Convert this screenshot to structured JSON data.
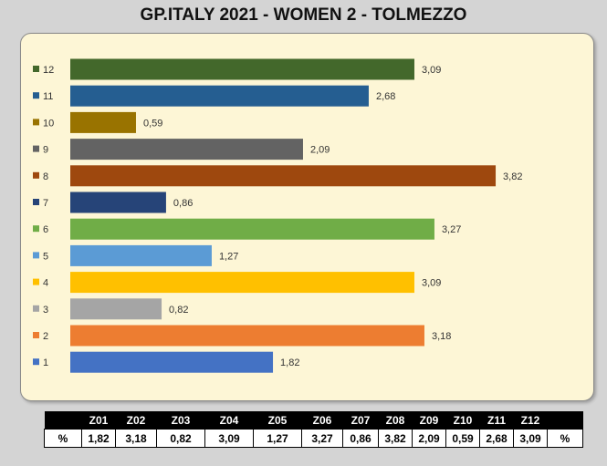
{
  "title": "GP.ITALY 2021 - WOMEN 2 - TOLMEZZO",
  "chart_data": {
    "type": "bar",
    "orientation": "horizontal",
    "categories": [
      "1",
      "2",
      "3",
      "4",
      "5",
      "6",
      "7",
      "8",
      "9",
      "10",
      "11",
      "12"
    ],
    "values": [
      1.82,
      3.18,
      0.82,
      3.09,
      1.27,
      3.27,
      0.86,
      3.82,
      2.09,
      0.59,
      2.68,
      3.09
    ],
    "data_labels": [
      "1,82",
      "3,18",
      "0,82",
      "3,09",
      "1,27",
      "3,27",
      "0,86",
      "3,82",
      "2,09",
      "0,59",
      "2,68",
      "3,09"
    ],
    "colors": [
      "#4472c4",
      "#ed7d31",
      "#a5a5a5",
      "#ffc000",
      "#5b9bd5",
      "#70ad47",
      "#264478",
      "#9e480e",
      "#636363",
      "#997300",
      "#255e91",
      "#43682b"
    ],
    "xlim": [
      0,
      4.4
    ],
    "grid": false,
    "legend": "left"
  },
  "table": {
    "headers": [
      "",
      "Z01",
      "Z02",
      "Z03",
      "Z04",
      "Z05",
      "Z06",
      "Z07",
      "Z08",
      "Z09",
      "Z10",
      "Z11",
      "Z12",
      ""
    ],
    "row": [
      "%",
      "1,82",
      "3,18",
      "0,82",
      "3,09",
      "1,27",
      "3,27",
      "0,86",
      "3,82",
      "2,09",
      "0,59",
      "2,68",
      "3,09",
      "%"
    ]
  }
}
